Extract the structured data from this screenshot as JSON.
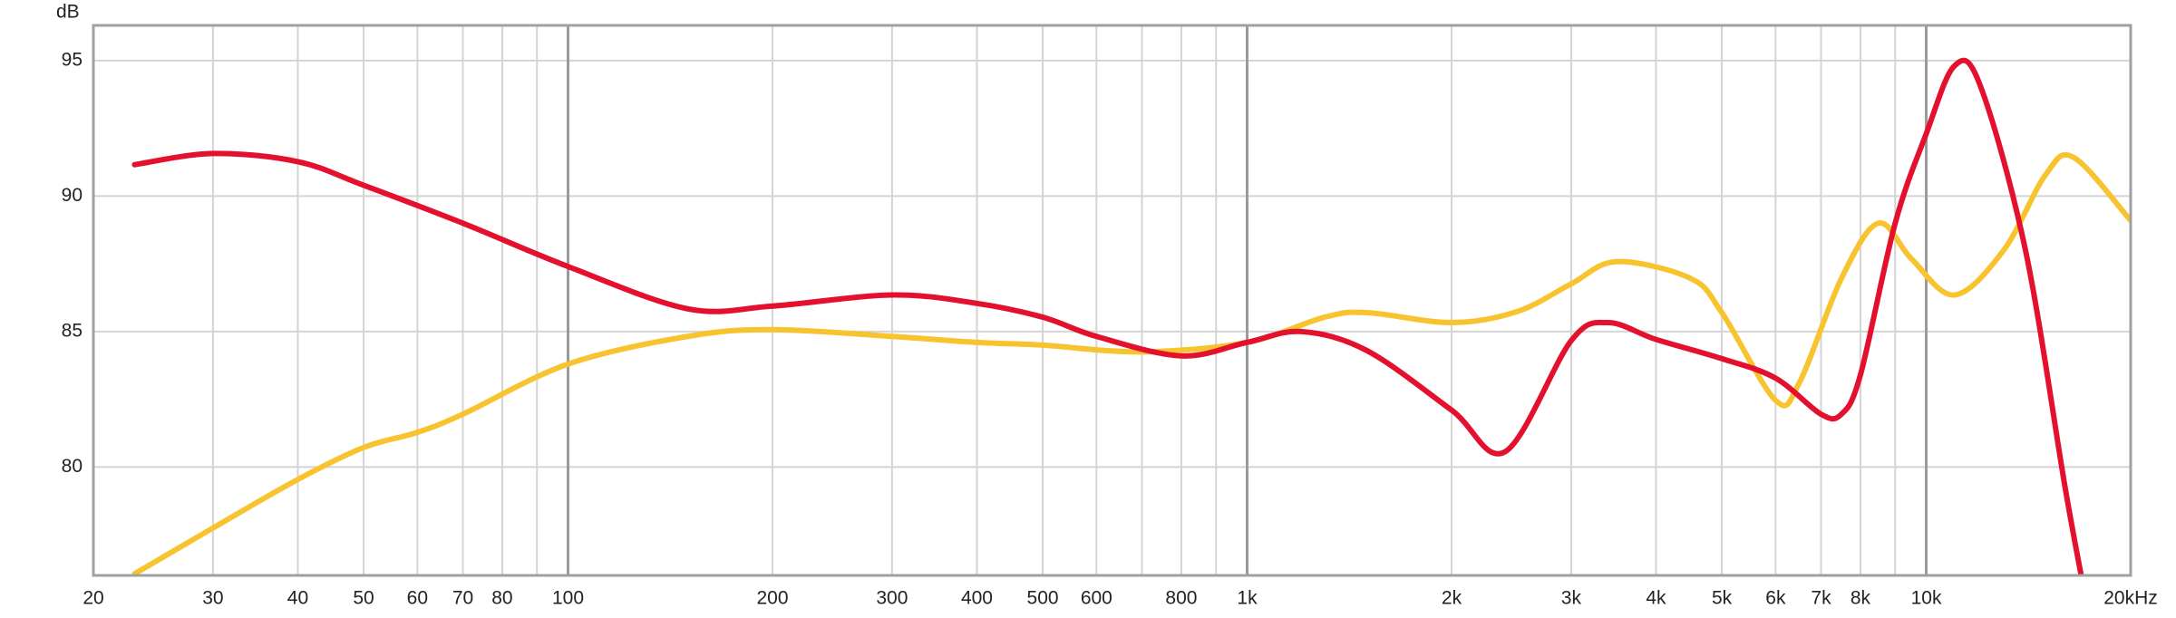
{
  "chart_data": {
    "type": "line",
    "y_label": "dB",
    "log_x": true,
    "grid": true,
    "xlim": [
      20,
      20000
    ],
    "ylim": [
      76,
      96.3
    ],
    "yticks": [
      80,
      85,
      90,
      95
    ],
    "xticks": [
      20,
      30,
      40,
      50,
      60,
      70,
      80,
      100,
      200,
      300,
      400,
      500,
      600,
      800,
      {
        "value": 1000,
        "label": "1k"
      },
      {
        "value": 2000,
        "label": "2k"
      },
      {
        "value": 3000,
        "label": "3k"
      },
      {
        "value": 4000,
        "label": "4k"
      },
      {
        "value": 5000,
        "label": "5k"
      },
      {
        "value": 6000,
        "label": "6k"
      },
      {
        "value": 7000,
        "label": "7k"
      },
      {
        "value": 8000,
        "label": "8k"
      },
      {
        "value": 10000,
        "label": "10k"
      },
      {
        "value": 20000,
        "label": "20kHz"
      }
    ],
    "xgrid_minor": [
      90,
      700,
      900,
      9000
    ],
    "series": [
      {
        "color": "#e3102e",
        "x": [
          23,
          30,
          40,
          50,
          70,
          100,
          150,
          200,
          300,
          400,
          500,
          600,
          800,
          1000,
          1200,
          1500,
          2000,
          2400,
          3000,
          3400,
          4000,
          5000,
          6000,
          7000,
          7500,
          8000,
          9000,
          10000,
          11000,
          12000,
          14000,
          16000,
          17000
        ],
        "values": [
          91.16,
          91.57,
          91.27,
          90.4,
          89.0,
          87.4,
          85.84,
          85.94,
          86.35,
          86.04,
          85.53,
          84.82,
          84.1,
          84.6,
          85.0,
          84.3,
          82.1,
          80.57,
          84.66,
          85.33,
          84.71,
          84.0,
          83.28,
          81.95,
          81.95,
          83.4,
          89.0,
          92.3,
          94.8,
          94.1,
          88.0,
          79.3,
          75.7
        ]
      },
      {
        "color": "#f7c32e",
        "x": [
          23,
          30,
          40,
          50,
          60,
          70,
          100,
          150,
          200,
          300,
          400,
          500,
          700,
          1000,
          1300,
          1500,
          2000,
          2500,
          3000,
          3500,
          4500,
          5000,
          6000,
          6500,
          7500,
          8500,
          9500,
          11000,
          13000,
          15000,
          16500,
          20000
        ],
        "values": [
          76.06,
          77.75,
          79.54,
          80.72,
          81.28,
          81.95,
          83.8,
          84.82,
          85.07,
          84.82,
          84.6,
          84.5,
          84.25,
          84.6,
          85.53,
          85.7,
          85.33,
          85.74,
          86.76,
          87.58,
          86.96,
          85.7,
          82.46,
          83.1,
          86.96,
          89.0,
          87.7,
          86.35,
          88.0,
          90.8,
          91.42,
          89.1
        ]
      }
    ]
  }
}
